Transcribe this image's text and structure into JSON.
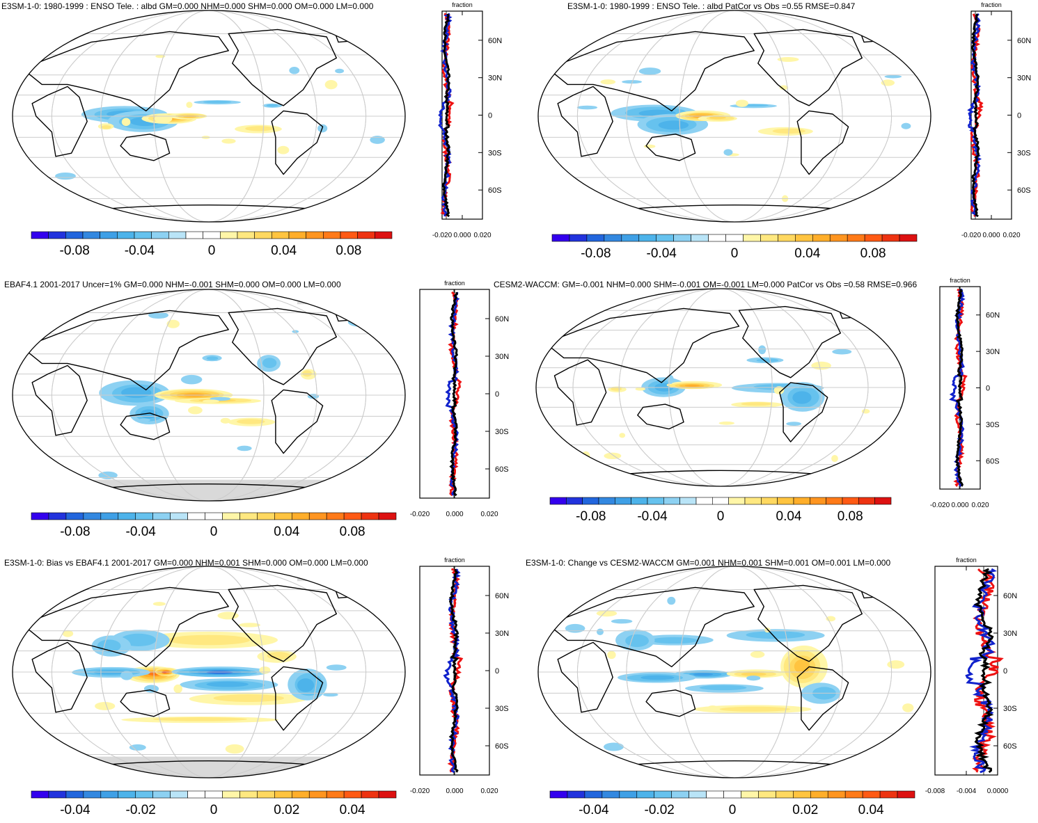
{
  "colors": {
    "ocean_bg": "#ffffff",
    "coast": "#000000",
    "grid": "#cccccc",
    "missing": "#d9d9d9",
    "profile_red": "#ee1111",
    "profile_blue": "#1122cc",
    "profile_black": "#000000"
  },
  "colorscale": {
    "full": [
      "#3300ee",
      "#2233dd",
      "#2266dd",
      "#3388e0",
      "#3fa0e6",
      "#4db3ea",
      "#66c2ee",
      "#8dd1f2",
      "#b9e4f7",
      "#ffffff",
      "#ffffff",
      "#fff6a8",
      "#ffe880",
      "#ffd860",
      "#ffc440",
      "#ffae2a",
      "#ff9520",
      "#ff7a18",
      "#ff5a14",
      "#ee3311",
      "#dd1111"
    ]
  },
  "panels": [
    {
      "id": "p1",
      "title": "E3SM-1-0: 1980-1999 : ENSO Tele. : albd GM=0.000 NHM=0.000 SHM=0.000 OM=0.000 LM=0.000",
      "colorbar_labels": [
        "-0.08",
        "-0.04",
        "0",
        "0.04",
        "0.08"
      ],
      "profile": {
        "xlabel": "fraction",
        "xticks": [
          "-0.020",
          "0.000",
          "0.020"
        ],
        "yticks": [
          "60N",
          "30N",
          "0",
          "30S",
          "60S"
        ]
      }
    },
    {
      "id": "p2",
      "title": "E3SM-1-0: 1980-1999 : ENSO Tele. : albd PatCor vs Obs =0.55 RMSE=0.847",
      "colorbar_labels": [
        "-0.08",
        "-0.04",
        "0",
        "0.04",
        "0.08"
      ],
      "profile": {
        "xlabel": "fraction",
        "xticks": [
          "-0.020",
          "0.000",
          "0.020"
        ],
        "yticks": [
          "60N",
          "30N",
          "0",
          "30S",
          "60S"
        ]
      }
    },
    {
      "id": "p3",
      "title": "EBAF4.1 2001-2017 Uncer=1% GM=0.000 NHM=-0.001 SHM=0.000 OM=0.000 LM=0.000",
      "colorbar_labels": [
        "-0.08",
        "-0.04",
        "0",
        "0.04",
        "0.08"
      ],
      "profile": {
        "xlabel": "fraction",
        "xticks": [
          "-0.020",
          "0.000",
          "0.020"
        ],
        "yticks": [
          "60N",
          "30N",
          "0",
          "30S",
          "60S"
        ]
      }
    },
    {
      "id": "p4",
      "title": "CESM2-WACCM: GM=-0.001 NHM=0.000 SHM=-0.001 OM=-0.001 LM=0.000 PatCor vs Obs =0.58 RMSE=0.966",
      "colorbar_labels": [
        "-0.08",
        "-0.04",
        "0",
        "0.04",
        "0.08"
      ],
      "profile": {
        "xlabel": "fraction",
        "xticks": [
          "-0.020",
          "0.000",
          "0.020"
        ],
        "yticks": [
          "60N",
          "30N",
          "0",
          "30S",
          "60S"
        ]
      }
    },
    {
      "id": "p5",
      "title": "E3SM-1-0: Bias vs EBAF4.1 2001-2017 GM=0.000 NHM=0.001 SHM=0.000 OM=0.000 LM=0.000",
      "colorbar_labels": [
        "-0.04",
        "-0.02",
        "0",
        "0.02",
        "0.04"
      ],
      "profile": {
        "xlabel": "fraction",
        "xticks": [
          "-0.020",
          "0.000",
          "0.020"
        ],
        "yticks": [
          "60N",
          "30N",
          "0",
          "30S",
          "60S"
        ]
      }
    },
    {
      "id": "p6",
      "title": "E3SM-1-0: Change vs CESM2-WACCM GM=0.001 NHM=0.001 SHM=0.001 OM=0.001 LM=0.000",
      "colorbar_labels": [
        "-0.04",
        "-0.02",
        "0",
        "0.02",
        "0.04"
      ],
      "profile": {
        "xlabel": "fraction",
        "xticks": [
          "-0.008",
          "-0.004",
          "0.0000"
        ],
        "yticks": [
          "60N",
          "30N",
          "0",
          "30S",
          "60S"
        ]
      }
    }
  ]
}
